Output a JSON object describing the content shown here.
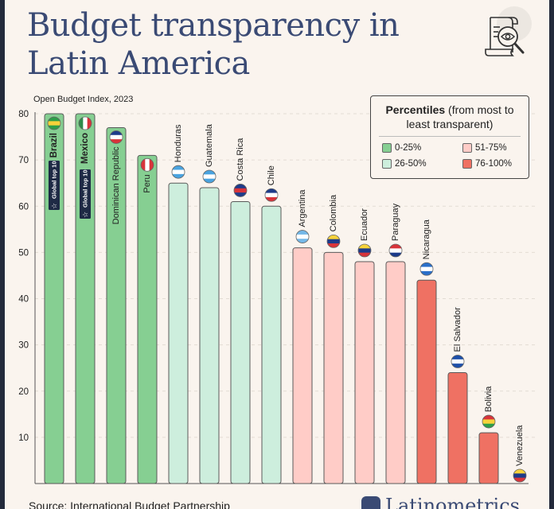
{
  "header": {
    "title_line1": "Budget transparency in",
    "title_line2": "Latin America",
    "icon": "document-magnifier-eye-icon"
  },
  "legend": {
    "title_bold": "Percentiles",
    "title_rest": " (from most to least transparent)",
    "items": [
      {
        "label": "0-25%",
        "color": "#86cf92"
      },
      {
        "label": "51-75%",
        "color": "#ffccc7"
      },
      {
        "label": "26-50%",
        "color": "#cdeedd"
      },
      {
        "label": "76-100%",
        "color": "#ef7163"
      }
    ]
  },
  "footer": {
    "source": "Source: International Budget Partnership",
    "brand": "Latinometrics"
  },
  "chart_data": {
    "type": "bar",
    "title": "Budget transparency in Latin America",
    "subtitle": "Open Budget Index, 2023",
    "xlabel": "",
    "ylabel": "Open Budget Index, 2023",
    "ylim": [
      0,
      80
    ],
    "yticks": [
      10,
      20,
      30,
      40,
      50,
      60,
      70,
      80
    ],
    "grid": true,
    "legend_position": "top-right",
    "badge_text": "Global top 10",
    "categories": [
      "Brazil",
      "Mexico",
      "Dominican Republic",
      "Peru",
      "Honduras",
      "Guatemala",
      "Costa Rica",
      "Chile",
      "Argentina",
      "Colombia",
      "Ecuador",
      "Paraguay",
      "Nicaragua",
      "El Salvador",
      "Bolivia",
      "Venezuela"
    ],
    "values": [
      80,
      80,
      77,
      71,
      65,
      64,
      61,
      60,
      51,
      50,
      48,
      48,
      44,
      24,
      11,
      0
    ],
    "percentile_group": [
      "0-25%",
      "0-25%",
      "0-25%",
      "0-25%",
      "26-50%",
      "26-50%",
      "26-50%",
      "26-50%",
      "51-75%",
      "51-75%",
      "51-75%",
      "51-75%",
      "76-100%",
      "76-100%",
      "76-100%",
      "76-100%"
    ],
    "global_top_10": [
      true,
      true,
      false,
      false,
      false,
      false,
      false,
      false,
      false,
      false,
      false,
      false,
      false,
      false,
      false,
      false
    ],
    "group_colors": {
      "0-25%": "#86cf92",
      "26-50%": "#cdeedd",
      "51-75%": "#ffccc7",
      "76-100%": "#ef7163"
    }
  }
}
